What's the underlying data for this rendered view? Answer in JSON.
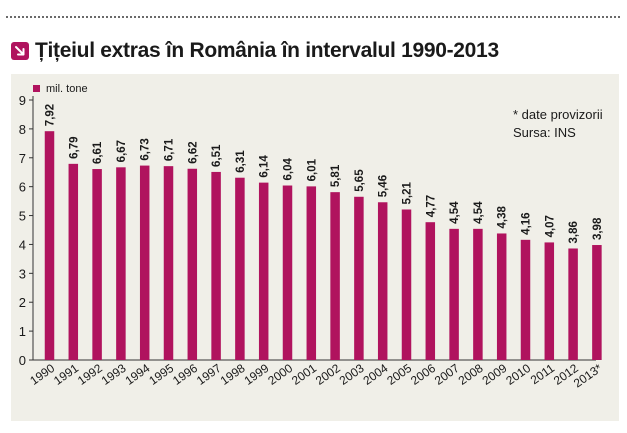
{
  "title": "Țițeiul extras în România în intervalul 1990-2013",
  "title_icon": "arrow-down-right-icon",
  "accent_color": "#b0135e",
  "notes": {
    "provisional": "* date provizorii",
    "source": "Sursa: INS"
  },
  "chart_data": {
    "type": "bar",
    "title": "Țițeiul extras în România în intervalul 1990-2013",
    "legend": {
      "label": "mil. tone",
      "placement": "top-left"
    },
    "categories": [
      "1990",
      "1991",
      "1992",
      "1993",
      "1994",
      "1995",
      "1996",
      "1997",
      "1998",
      "1999",
      "2000",
      "2001",
      "2002",
      "2003",
      "2004",
      "2005",
      "2006",
      "2007",
      "2008",
      "2009",
      "2010",
      "2011",
      "2012",
      "2013*"
    ],
    "series": [
      {
        "name": "mil. tone",
        "color": "#b0135e",
        "values": [
          7.92,
          6.79,
          6.61,
          6.67,
          6.73,
          6.71,
          6.62,
          6.51,
          6.31,
          6.14,
          6.04,
          6.01,
          5.81,
          5.65,
          5.46,
          5.21,
          4.77,
          4.54,
          4.54,
          4.38,
          4.16,
          4.07,
          3.86,
          3.98
        ],
        "labels": [
          "7,92",
          "6,79",
          "6,61",
          "6,67",
          "6,73",
          "6,71",
          "6,62",
          "6,51",
          "6,31",
          "6,14",
          "6,04",
          "6,01",
          "5,81",
          "5,65",
          "5,46",
          "5,21",
          "4,77",
          "4,54",
          "4,54",
          "4,38",
          "4,16",
          "4,07",
          "3,86",
          "3,98"
        ]
      }
    ],
    "yticks": [
      "0",
      "1",
      "2",
      "3",
      "4",
      "5",
      "6",
      "7",
      "8",
      "9"
    ],
    "ylim": [
      0,
      9
    ],
    "grid": false
  }
}
